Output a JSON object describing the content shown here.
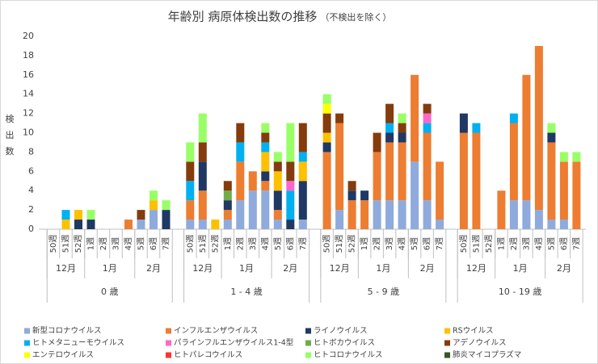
{
  "chart_data": {
    "type": "stacked-bar",
    "title": "年齢別 病原体検出数の推移",
    "subtitle": "（不検出を除く）",
    "y_label": "検出数",
    "ylim": [
      0,
      20
    ],
    "yticks": [
      0,
      2,
      4,
      6,
      8,
      10,
      12,
      14,
      16,
      18,
      20
    ],
    "grid": false,
    "groups": [
      {
        "name": "0 歳",
        "months": [
          {
            "name": "12月",
            "weeks": [
              "50週",
              "51週",
              "52週"
            ]
          },
          {
            "name": "1月",
            "weeks": [
              "1週",
              "2週",
              "3週",
              "4週"
            ]
          },
          {
            "name": "2月",
            "weeks": [
              "5週",
              "6週",
              "7週"
            ]
          }
        ]
      },
      {
        "name": "1 - 4 歳",
        "months": [
          {
            "name": "12月",
            "weeks": [
              "50週",
              "51週",
              "52週"
            ]
          },
          {
            "name": "1月",
            "weeks": [
              "1週",
              "2週",
              "3週",
              "4週"
            ]
          },
          {
            "name": "2月",
            "weeks": [
              "5週",
              "6週",
              "7週"
            ]
          }
        ]
      },
      {
        "name": "5 - 9 歳",
        "months": [
          {
            "name": "12月",
            "weeks": [
              "50週",
              "51週",
              "52週"
            ]
          },
          {
            "name": "1月",
            "weeks": [
              "1週",
              "2週",
              "3週",
              "4週"
            ]
          },
          {
            "name": "2月",
            "weeks": [
              "5週",
              "6週",
              "7週"
            ]
          }
        ]
      },
      {
        "name": "10 - 19 歳",
        "months": [
          {
            "name": "12月",
            "weeks": [
              "50週",
              "51週",
              "52週"
            ]
          },
          {
            "name": "1月",
            "weeks": [
              "1週",
              "2週",
              "3週",
              "4週"
            ]
          },
          {
            "name": "2月",
            "weeks": [
              "5週",
              "6週",
              "7週"
            ]
          }
        ]
      }
    ],
    "series": [
      {
        "name": "新型コロナウイルス",
        "color": "#8faadc",
        "values": [
          0,
          0,
          0,
          0,
          0,
          0,
          0,
          1,
          2,
          0,
          1,
          1,
          0,
          1,
          3,
          4,
          4,
          1,
          0,
          1,
          0,
          2,
          0,
          0,
          3,
          3,
          3,
          7,
          3,
          1,
          0,
          0,
          0,
          0,
          3,
          3,
          2,
          1,
          1,
          0
        ]
      },
      {
        "name": "インフルエンザウイルス",
        "color": "#ed7d31",
        "values": [
          0,
          0,
          0,
          0,
          0,
          0,
          1,
          0,
          0,
          0,
          2,
          3,
          0,
          1,
          4,
          2,
          1,
          1,
          0,
          0,
          8,
          9,
          3,
          3,
          5,
          6,
          6,
          9,
          7,
          6,
          10,
          10,
          0,
          4,
          8,
          13,
          17,
          8,
          6,
          7
        ]
      },
      {
        "name": "ライノウイルス",
        "color": "#203864",
        "values": [
          0,
          0,
          1,
          1,
          0,
          0,
          0,
          0,
          0,
          2,
          0,
          3,
          0,
          1,
          0,
          0,
          1,
          2,
          1,
          4,
          1,
          0,
          1,
          1,
          0,
          1,
          1,
          0,
          0,
          0,
          2,
          0,
          0,
          0,
          0,
          0,
          0,
          1,
          0,
          0
        ]
      },
      {
        "name": "RSウイルス",
        "color": "#ffc000",
        "values": [
          0,
          1,
          1,
          0,
          0,
          0,
          0,
          0,
          1,
          0,
          0,
          0,
          1,
          0,
          0,
          0,
          2,
          2,
          0,
          2,
          1,
          0,
          0,
          0,
          0,
          0,
          0,
          0,
          0,
          0,
          0,
          0,
          0,
          0,
          0,
          0,
          0,
          0,
          0,
          0
        ]
      },
      {
        "name": "ヒトメタニューモウイルス",
        "color": "#00b0f0",
        "values": [
          0,
          1,
          0,
          0,
          0,
          0,
          0,
          0,
          0,
          0,
          2,
          0,
          0,
          0,
          2,
          0,
          1,
          0,
          3,
          1,
          0,
          0,
          0,
          0,
          0,
          1,
          0,
          0,
          1,
          0,
          0,
          1,
          0,
          0,
          1,
          0,
          0,
          0,
          0,
          0
        ]
      },
      {
        "name": "パラインフルエンザウイルス1-4型",
        "color": "#ff66cc",
        "values": [
          0,
          0,
          0,
          0,
          0,
          0,
          0,
          0,
          0,
          0,
          0,
          0,
          0,
          0,
          0,
          0,
          0,
          0,
          1,
          0,
          0,
          0,
          0,
          0,
          0,
          0,
          0,
          0,
          1,
          0,
          0,
          0,
          0,
          0,
          0,
          0,
          0,
          0,
          0,
          0
        ]
      },
      {
        "name": "ヒトボカウイルス",
        "color": "#70ad47",
        "values": [
          0,
          0,
          0,
          0,
          0,
          0,
          0,
          0,
          0,
          0,
          0,
          0,
          0,
          1,
          0,
          0,
          0,
          0,
          0,
          0,
          0,
          0,
          0,
          0,
          0,
          0,
          0,
          0,
          0,
          0,
          0,
          0,
          0,
          0,
          0,
          0,
          0,
          0,
          0,
          0
        ]
      },
      {
        "name": "アデノウイルス",
        "color": "#843c0c",
        "values": [
          0,
          0,
          0,
          0,
          0,
          0,
          0,
          1,
          0,
          0,
          2,
          2,
          0,
          1,
          2,
          0,
          1,
          1,
          2,
          3,
          2,
          1,
          1,
          0,
          2,
          2,
          1,
          0,
          1,
          0,
          0,
          0,
          0,
          0,
          0,
          0,
          0,
          0,
          0,
          0
        ]
      },
      {
        "name": "エンテロウイルス",
        "color": "#ffff00",
        "values": [
          0,
          0,
          0,
          0,
          0,
          0,
          0,
          0,
          0,
          0,
          0,
          0,
          0,
          0,
          0,
          0,
          0,
          0,
          0,
          0,
          1,
          0,
          0,
          0,
          0,
          0,
          0,
          0,
          0,
          0,
          0,
          0,
          0,
          0,
          0,
          0,
          0,
          0,
          0,
          0
        ]
      },
      {
        "name": "ヒトパレコウイルス",
        "color": "#ff3333",
        "values": [
          0,
          0,
          0,
          0,
          0,
          0,
          0,
          0,
          0,
          0,
          0,
          0,
          0,
          0,
          0,
          0,
          0,
          0,
          0,
          0,
          0,
          0,
          0,
          0,
          0,
          0,
          0,
          0,
          0,
          0,
          0,
          0,
          0,
          0,
          0,
          0,
          0,
          0,
          0,
          0
        ]
      },
      {
        "name": "ヒトコロナウイルス",
        "color": "#99ff66",
        "values": [
          0,
          0,
          0,
          1,
          0,
          0,
          0,
          0,
          1,
          1,
          2,
          3,
          0,
          0,
          0,
          0,
          1,
          1,
          4,
          0,
          1,
          0,
          0,
          0,
          0,
          0,
          1,
          0,
          0,
          0,
          0,
          0,
          0,
          0,
          0,
          0,
          0,
          1,
          1,
          1
        ]
      },
      {
        "name": "肺炎マイコプラズマ",
        "color": "#375623",
        "values": [
          0,
          0,
          0,
          0,
          0,
          0,
          0,
          0,
          0,
          0,
          0,
          0,
          0,
          0,
          0,
          0,
          0,
          0,
          0,
          0,
          0,
          0,
          0,
          0,
          0,
          0,
          0,
          0,
          0,
          0,
          0,
          0,
          0,
          0,
          0,
          0,
          0,
          0,
          0,
          0
        ]
      }
    ]
  }
}
